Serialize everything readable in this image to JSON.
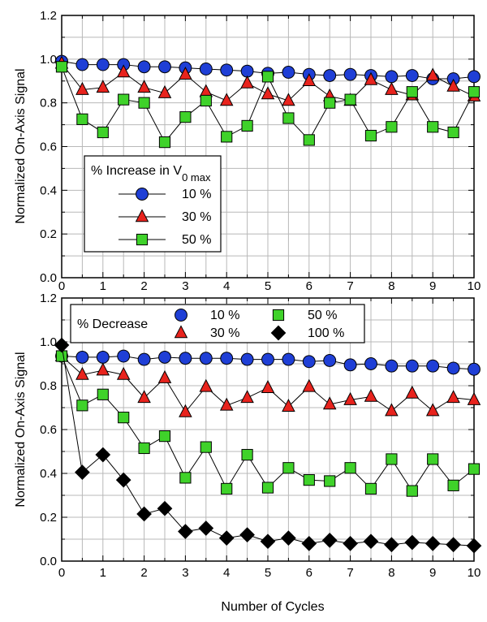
{
  "shared_xlabel": "Number of Cycles",
  "chart_data": [
    {
      "type": "line",
      "ylabel": "Normalized On-Axis Signal",
      "xlim": [
        0,
        10
      ],
      "ylim": [
        0,
        1.2
      ],
      "xticks": [
        "0",
        "1",
        "2",
        "3",
        "4",
        "5",
        "6",
        "7",
        "8",
        "9",
        "10"
      ],
      "yticks": [
        "0.0",
        "0.2",
        "0.4",
        "0.6",
        "0.8",
        "1.0",
        "1.2"
      ],
      "grid": true,
      "legend": {
        "title_main": "% Increase in V",
        "title_sub": "0 max",
        "placement": "left-middle",
        "columns": 1
      },
      "x": [
        0,
        0.5,
        1,
        1.5,
        2,
        2.5,
        3,
        3.5,
        4,
        4.5,
        5,
        5.5,
        6,
        6.5,
        7,
        7.5,
        8,
        8.5,
        9,
        9.5,
        10
      ],
      "series": [
        {
          "name": "10 %",
          "marker": "circle",
          "color": "#1f3fd6",
          "values": [
            0.99,
            0.975,
            0.975,
            0.975,
            0.965,
            0.965,
            0.96,
            0.955,
            0.95,
            0.945,
            0.935,
            0.94,
            0.93,
            0.925,
            0.93,
            0.925,
            0.92,
            0.925,
            0.91,
            0.91,
            0.92
          ]
        },
        {
          "name": "30 %",
          "marker": "triangle",
          "color": "#e8231d",
          "values": [
            0.98,
            0.86,
            0.87,
            0.94,
            0.87,
            0.845,
            0.93,
            0.85,
            0.81,
            0.89,
            0.84,
            0.81,
            0.9,
            0.83,
            0.81,
            0.905,
            0.86,
            0.835,
            0.925,
            0.875,
            0.83
          ]
        },
        {
          "name": "50 %",
          "marker": "square",
          "color": "#3fd22a",
          "values": [
            0.965,
            0.725,
            0.665,
            0.815,
            0.8,
            0.62,
            0.735,
            0.81,
            0.645,
            0.695,
            0.92,
            0.73,
            0.63,
            0.8,
            0.815,
            0.65,
            0.69,
            0.85,
            0.69,
            0.665,
            0.85
          ]
        }
      ]
    },
    {
      "type": "line",
      "ylabel": "Normalized On-Axis Signal",
      "xlim": [
        0,
        10
      ],
      "ylim": [
        0,
        1.2
      ],
      "xticks": [
        "0",
        "1",
        "2",
        "3",
        "4",
        "5",
        "6",
        "7",
        "8",
        "9",
        "10"
      ],
      "yticks": [
        "0.0",
        "0.2",
        "0.4",
        "0.6",
        "0.8",
        "1.0",
        "1.2"
      ],
      "grid": true,
      "legend": {
        "title_main": "% Decrease",
        "placement": "top",
        "columns": 2
      },
      "x": [
        0,
        0.5,
        1,
        1.5,
        2,
        2.5,
        3,
        3.5,
        4,
        4.5,
        5,
        5.5,
        6,
        6.5,
        7,
        7.5,
        8,
        8.5,
        9,
        9.5,
        10
      ],
      "series": [
        {
          "name": "10 %",
          "marker": "circle",
          "color": "#1f3fd6",
          "values": [
            0.935,
            0.93,
            0.93,
            0.935,
            0.92,
            0.93,
            0.925,
            0.925,
            0.925,
            0.92,
            0.92,
            0.92,
            0.91,
            0.915,
            0.895,
            0.9,
            0.89,
            0.89,
            0.89,
            0.88,
            0.875
          ]
        },
        {
          "name": "30 %",
          "marker": "triangle",
          "color": "#e8231d",
          "values": [
            0.935,
            0.85,
            0.87,
            0.85,
            0.745,
            0.835,
            0.68,
            0.795,
            0.71,
            0.745,
            0.79,
            0.705,
            0.795,
            0.715,
            0.735,
            0.75,
            0.685,
            0.765,
            0.685,
            0.745,
            0.735
          ]
        },
        {
          "name": "50 %",
          "marker": "square",
          "color": "#3fd22a",
          "values": [
            0.935,
            0.71,
            0.76,
            0.655,
            0.515,
            0.57,
            0.38,
            0.52,
            0.33,
            0.485,
            0.335,
            0.425,
            0.37,
            0.365,
            0.425,
            0.33,
            0.465,
            0.32,
            0.465,
            0.345,
            0.42
          ]
        },
        {
          "name": "100 %",
          "marker": "diamond",
          "color": "#000000",
          "values": [
            0.985,
            0.405,
            0.485,
            0.37,
            0.215,
            0.24,
            0.135,
            0.15,
            0.105,
            0.12,
            0.09,
            0.105,
            0.08,
            0.095,
            0.08,
            0.09,
            0.075,
            0.085,
            0.08,
            0.075,
            0.07
          ]
        }
      ]
    }
  ]
}
